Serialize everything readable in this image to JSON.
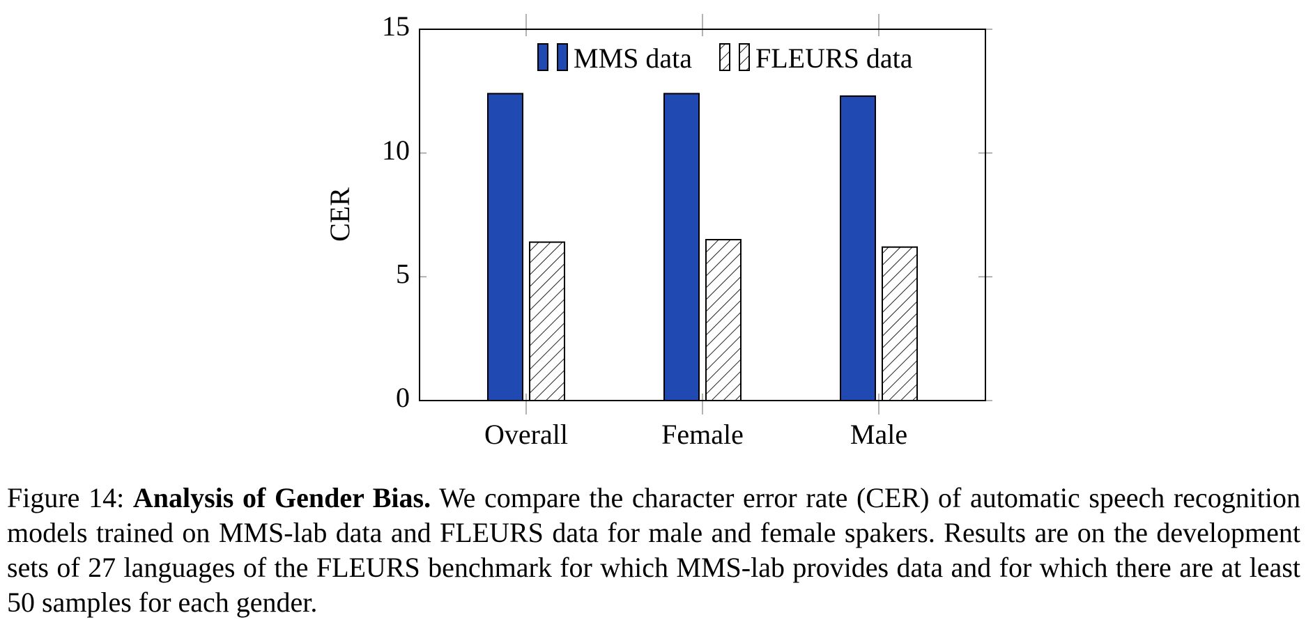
{
  "chart_data": {
    "type": "bar",
    "y_label": "CER",
    "categories": [
      "Overall",
      "Female",
      "Male"
    ],
    "series": [
      {
        "name": "MMS data",
        "color": "#2049b2",
        "values": [
          12.4,
          12.4,
          12.3
        ]
      },
      {
        "name": "FLEURS data",
        "color": "#ffffff",
        "pattern": "hatch",
        "values": [
          6.4,
          6.5,
          6.2
        ]
      }
    ],
    "ylim": [
      0,
      15
    ],
    "yticks": [
      0,
      5,
      10,
      15
    ],
    "legend": "top-right"
  },
  "caption": {
    "label": "Figure 14:",
    "title": "Analysis of Gender Bias.",
    "text": "We compare the character error rate (CER) of automatic speech recognition models trained on MMS-lab data and FLEURS data for male and female spakers. Results are on the development sets of 27 languages of the FLEURS benchmark for which MMS-lab provides data and for which there are at least 50 samples for each gender."
  }
}
